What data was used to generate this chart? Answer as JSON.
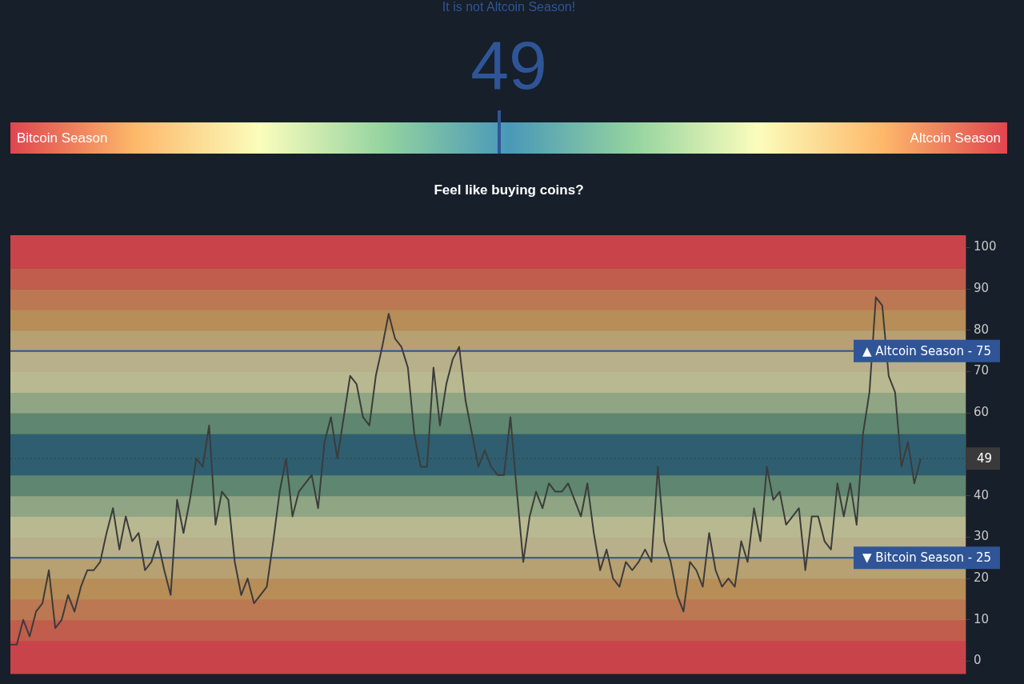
{
  "chart_data": [
    {
      "type": "other",
      "title": "It is not Altcoin Season!",
      "values": [
        49
      ],
      "data_labels": true,
      "annotations": [
        "Bitcoin Season",
        "Altcoin Season",
        "Feel like buying coins?"
      ]
    },
    {
      "type": "line",
      "tick_labels": "y",
      "legend": false,
      "categories": [
        null,
        null,
        null,
        null,
        null,
        null,
        null,
        null,
        null,
        null,
        null,
        null,
        null,
        null,
        null,
        null,
        null,
        null,
        null,
        null,
        null,
        null,
        null,
        null,
        null,
        null,
        null,
        null,
        null,
        null,
        null,
        null,
        null,
        null,
        null,
        null,
        null,
        null,
        null,
        null,
        null,
        null,
        null,
        null,
        null,
        null,
        null,
        null,
        null,
        null,
        null,
        null,
        null,
        null,
        null,
        null,
        null,
        null,
        null,
        null,
        null,
        null,
        null,
        null,
        null,
        null,
        null,
        null,
        null,
        null,
        null,
        null,
        null,
        null,
        null,
        null,
        null,
        null,
        null,
        null,
        null,
        null,
        null,
        null,
        null,
        null,
        null,
        null,
        null,
        null,
        null,
        null,
        null,
        null,
        null,
        null,
        null,
        null,
        null,
        null,
        null,
        null,
        null,
        null,
        null,
        null,
        null,
        null,
        null,
        null,
        null,
        null,
        null,
        null,
        null,
        null,
        null,
        null,
        null,
        null,
        null,
        null,
        null,
        null,
        null,
        null,
        null,
        null,
        null,
        null,
        null,
        null,
        null,
        null,
        null,
        null,
        null,
        null,
        null,
        null,
        null,
        null,
        null,
        null,
        null,
        null,
        null,
        null,
        null,
        null
      ],
      "series": [
        {
          "color": "#3c3c3c",
          "values": [
            4,
            4,
            10,
            6,
            12,
            14,
            22,
            8,
            10,
            16,
            12,
            18,
            22,
            22,
            24,
            31,
            37,
            27,
            35,
            29,
            31,
            22,
            24,
            29,
            22,
            16,
            39,
            31,
            39,
            49,
            47,
            57,
            33,
            41,
            39,
            24,
            16,
            20,
            14,
            16,
            18,
            29,
            41,
            49,
            35,
            41,
            43,
            45,
            37,
            53,
            59,
            49,
            59,
            69,
            67,
            59,
            57,
            69,
            76,
            84,
            78,
            76,
            71,
            55,
            47,
            47,
            71,
            57,
            67,
            73,
            76,
            63,
            55,
            47,
            51,
            47,
            45,
            45,
            59,
            41,
            24,
            35,
            41,
            37,
            43,
            41,
            41,
            43,
            39,
            35,
            43,
            31,
            22,
            27,
            20,
            18,
            24,
            22,
            24,
            27,
            24,
            47,
            29,
            24,
            16,
            12,
            24,
            22,
            18,
            31,
            22,
            18,
            20,
            18,
            29,
            24,
            37,
            29,
            47,
            39,
            41,
            33,
            35,
            37,
            22,
            35,
            35,
            29,
            27,
            43,
            35,
            43,
            33,
            55,
            65,
            88,
            86,
            69,
            65,
            47,
            53,
            43,
            49,
            null,
            null,
            null,
            null,
            null,
            null,
            null
          ]
        }
      ],
      "ylim": [
        -3,
        103
      ],
      "yticks": [
        0,
        10,
        20,
        30,
        40,
        60,
        70,
        80,
        90,
        100
      ],
      "ref_lines": [
        {
          "axis": "y",
          "value": 75,
          "label": "▲ Altcoin Season - 75",
          "color": "#2f5597"
        },
        {
          "axis": "y",
          "value": 25,
          "label": "▼ Bitcoin Season - 25",
          "color": "#2f5597"
        },
        {
          "axis": "y",
          "value": 49,
          "label": "49",
          "color": "#3a3a3a",
          "line_style": "dotted"
        }
      ],
      "bands": [
        {
          "axis": "y",
          "from": -3,
          "to": 5,
          "color": "#c8444a"
        },
        {
          "axis": "y",
          "from": 5,
          "to": 10,
          "color": "#c15d4d"
        },
        {
          "axis": "y",
          "from": 10,
          "to": 15,
          "color": "#bb7852"
        },
        {
          "axis": "y",
          "from": 15,
          "to": 20,
          "color": "#b78d58"
        },
        {
          "axis": "y",
          "from": 20,
          "to": 25,
          "color": "#b7a071"
        },
        {
          "axis": "y",
          "from": 25,
          "to": 30,
          "color": "#b8b08a"
        },
        {
          "axis": "y",
          "from": 30,
          "to": 35,
          "color": "#b8b990"
        },
        {
          "axis": "y",
          "from": 35,
          "to": 40,
          "color": "#8fa583"
        },
        {
          "axis": "y",
          "from": 40,
          "to": 45,
          "color": "#5e8670"
        },
        {
          "axis": "y",
          "from": 45,
          "to": 50,
          "color": "#2f5e70"
        },
        {
          "axis": "y",
          "from": 50,
          "to": 55,
          "color": "#2f5e70"
        },
        {
          "axis": "y",
          "from": 55,
          "to": 60,
          "color": "#5e8670"
        },
        {
          "axis": "y",
          "from": 60,
          "to": 65,
          "color": "#8fa583"
        },
        {
          "axis": "y",
          "from": 65,
          "to": 70,
          "color": "#b8b990"
        },
        {
          "axis": "y",
          "from": 70,
          "to": 75,
          "color": "#b8b08a"
        },
        {
          "axis": "y",
          "from": 75,
          "to": 80,
          "color": "#b7a071"
        },
        {
          "axis": "y",
          "from": 80,
          "to": 85,
          "color": "#b78d58"
        },
        {
          "axis": "y",
          "from": 85,
          "to": 90,
          "color": "#bb7852"
        },
        {
          "axis": "y",
          "from": 90,
          "to": 95,
          "color": "#c15d4d"
        },
        {
          "axis": "y",
          "from": 95,
          "to": 103,
          "color": "#c8444a"
        }
      ]
    }
  ]
}
